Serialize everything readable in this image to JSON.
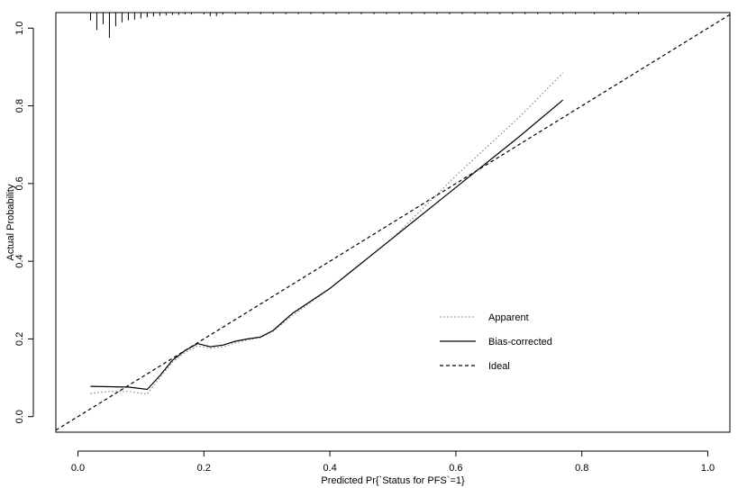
{
  "chart_data": {
    "type": "line",
    "title": "",
    "xlabel": "Predicted Pr{`Status for PFS`=1}",
    "ylabel": "Actual Probability",
    "xlim": [
      -0.035,
      1.035
    ],
    "ylim": [
      -0.04,
      1.04
    ],
    "x_ticks": [
      "0.0",
      "0.2",
      "0.4",
      "0.6",
      "0.8",
      "1.0"
    ],
    "y_ticks": [
      "0.0",
      "0.2",
      "0.4",
      "0.6",
      "0.8",
      "1.0"
    ],
    "x_tick_values": [
      0,
      0.2,
      0.4,
      0.6,
      0.8,
      1.0
    ],
    "y_tick_values": [
      0,
      0.2,
      0.4,
      0.6,
      0.8,
      1.0
    ],
    "grid": false,
    "legend_position": "bottom-right",
    "series": [
      {
        "name": "Apparent",
        "style": "dotted",
        "color": "#888888",
        "points": [
          [
            0.02,
            0.06
          ],
          [
            0.05,
            0.065
          ],
          [
            0.08,
            0.065
          ],
          [
            0.11,
            0.058
          ],
          [
            0.13,
            0.1
          ],
          [
            0.15,
            0.14
          ],
          [
            0.17,
            0.165
          ],
          [
            0.19,
            0.182
          ],
          [
            0.21,
            0.176
          ],
          [
            0.23,
            0.18
          ],
          [
            0.25,
            0.19
          ],
          [
            0.27,
            0.198
          ],
          [
            0.29,
            0.203
          ],
          [
            0.31,
            0.22
          ],
          [
            0.34,
            0.26
          ],
          [
            0.4,
            0.33
          ],
          [
            0.5,
            0.46
          ],
          [
            0.6,
            0.62
          ],
          [
            0.7,
            0.77
          ],
          [
            0.77,
            0.885
          ]
        ]
      },
      {
        "name": "Bias-corrected",
        "style": "solid",
        "color": "#000000",
        "points": [
          [
            0.02,
            0.078
          ],
          [
            0.05,
            0.077
          ],
          [
            0.08,
            0.076
          ],
          [
            0.11,
            0.07
          ],
          [
            0.13,
            0.105
          ],
          [
            0.15,
            0.145
          ],
          [
            0.17,
            0.17
          ],
          [
            0.19,
            0.188
          ],
          [
            0.21,
            0.18
          ],
          [
            0.23,
            0.184
          ],
          [
            0.25,
            0.194
          ],
          [
            0.27,
            0.2
          ],
          [
            0.29,
            0.205
          ],
          [
            0.31,
            0.222
          ],
          [
            0.34,
            0.265
          ],
          [
            0.4,
            0.33
          ],
          [
            0.5,
            0.46
          ],
          [
            0.6,
            0.59
          ],
          [
            0.7,
            0.72
          ],
          [
            0.77,
            0.815
          ]
        ]
      },
      {
        "name": "Ideal",
        "style": "dashed",
        "color": "#000000",
        "points": [
          [
            -0.035,
            -0.035
          ],
          [
            1.035,
            1.035
          ]
        ]
      }
    ],
    "rug": {
      "y_top": 1.04,
      "items": [
        [
          0.02,
          0.02
        ],
        [
          0.03,
          0.045
        ],
        [
          0.04,
          0.03
        ],
        [
          0.05,
          0.065
        ],
        [
          0.06,
          0.035
        ],
        [
          0.07,
          0.025
        ],
        [
          0.08,
          0.02
        ],
        [
          0.09,
          0.018
        ],
        [
          0.1,
          0.015
        ],
        [
          0.11,
          0.012
        ],
        [
          0.12,
          0.01
        ],
        [
          0.13,
          0.008
        ],
        [
          0.14,
          0.007
        ],
        [
          0.15,
          0.006
        ],
        [
          0.16,
          0.006
        ],
        [
          0.17,
          0.005
        ],
        [
          0.18,
          0.005
        ],
        [
          0.2,
          0.005
        ],
        [
          0.21,
          0.009
        ],
        [
          0.22,
          0.009
        ],
        [
          0.23,
          0.005
        ],
        [
          0.25,
          0.005
        ],
        [
          0.27,
          0.004
        ],
        [
          0.29,
          0.004
        ],
        [
          0.31,
          0.004
        ],
        [
          0.33,
          0.004
        ],
        [
          0.35,
          0.004
        ],
        [
          0.37,
          0.004
        ],
        [
          0.39,
          0.004
        ],
        [
          0.41,
          0.004
        ],
        [
          0.43,
          0.004
        ],
        [
          0.45,
          0.004
        ],
        [
          0.47,
          0.004
        ],
        [
          0.49,
          0.004
        ],
        [
          0.51,
          0.004
        ],
        [
          0.53,
          0.004
        ],
        [
          0.55,
          0.004
        ],
        [
          0.57,
          0.004
        ],
        [
          0.59,
          0.004
        ],
        [
          0.61,
          0.004
        ],
        [
          0.63,
          0.004
        ],
        [
          0.65,
          0.004
        ],
        [
          0.67,
          0.004
        ],
        [
          0.69,
          0.004
        ],
        [
          0.71,
          0.004
        ],
        [
          0.73,
          0.004
        ],
        [
          0.75,
          0.004
        ],
        [
          0.77,
          0.004
        ],
        [
          0.79,
          0.004
        ],
        [
          0.82,
          0.004
        ],
        [
          0.85,
          0.004
        ],
        [
          0.87,
          0.004
        ],
        [
          0.89,
          0.004
        ]
      ]
    }
  }
}
